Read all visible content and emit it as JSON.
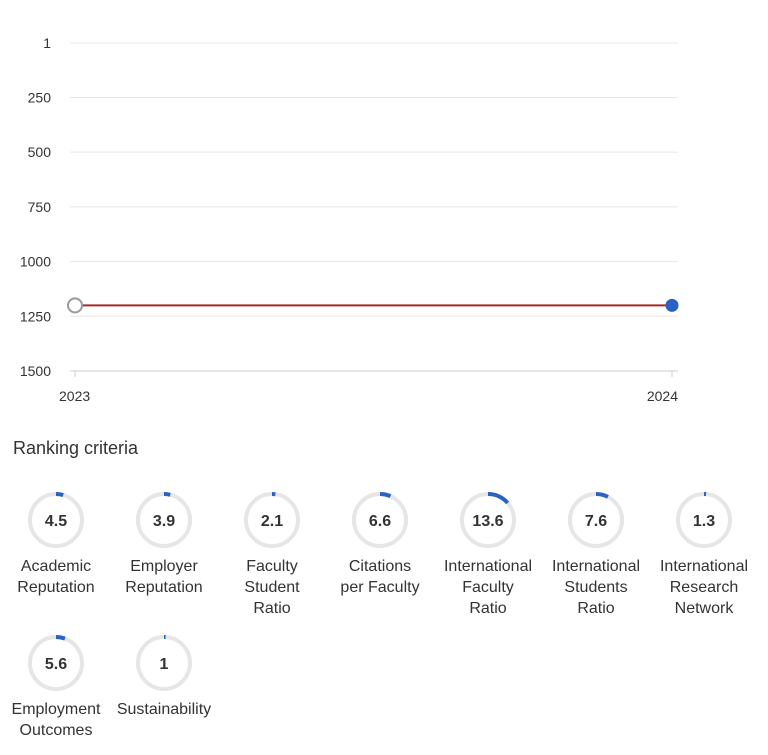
{
  "chart_data": {
    "type": "line",
    "x": [
      "2023",
      "2024"
    ],
    "y_ticks": [
      1,
      250,
      500,
      750,
      1000,
      1250,
      1500
    ],
    "ylim": [
      1,
      1500
    ],
    "y_inverted": true,
    "series": [
      {
        "values": [
          1200,
          1200
        ],
        "color": "#a52a2a"
      }
    ],
    "point_colors": [
      "#ffffff",
      "#2a62c4"
    ],
    "grid": true
  },
  "ranking": {
    "title": "Ranking criteria",
    "accent": "#2a62c4",
    "track": "#e6e6e6",
    "items": [
      {
        "value": "4.5",
        "score": 4.5,
        "label": [
          "Academic",
          "Reputation"
        ]
      },
      {
        "value": "3.9",
        "score": 3.9,
        "label": [
          "Employer",
          "Reputation"
        ]
      },
      {
        "value": "2.1",
        "score": 2.1,
        "label": [
          "Faculty",
          "Student",
          "Ratio"
        ]
      },
      {
        "value": "6.6",
        "score": 6.6,
        "label": [
          "Citations",
          "per Faculty"
        ]
      },
      {
        "value": "13.6",
        "score": 13.6,
        "label": [
          "International",
          "Faculty",
          "Ratio"
        ]
      },
      {
        "value": "7.6",
        "score": 7.6,
        "label": [
          "International",
          "Students",
          "Ratio"
        ]
      },
      {
        "value": "1.3",
        "score": 1.3,
        "label": [
          "International",
          "Research",
          "Network"
        ]
      },
      {
        "value": "5.6",
        "score": 5.6,
        "label": [
          "Employment",
          "Outcomes"
        ]
      },
      {
        "value": "1",
        "score": 1,
        "label": [
          "Sustainability"
        ]
      }
    ]
  }
}
